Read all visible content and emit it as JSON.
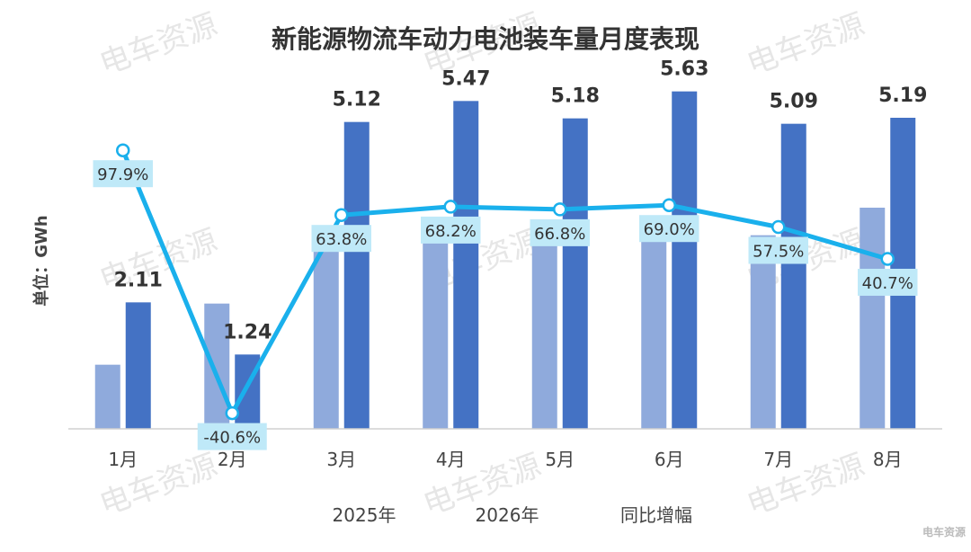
{
  "chart_data": {
    "type": "bar",
    "title": "新能源物流车动力电池装车量月度表现",
    "ylabel": "单位：GWh",
    "categories": [
      "1月",
      "2月",
      "3月",
      "4月",
      "5月",
      "6月",
      "7月",
      "8月"
    ],
    "series": [
      {
        "name": "2025年",
        "values": [
          1.07,
          2.09,
          3.13,
          3.25,
          3.11,
          3.33,
          3.23,
          3.69
        ],
        "color": "#8faadc"
      },
      {
        "name": "2026年",
        "values": [
          2.11,
          1.24,
          5.12,
          5.47,
          5.18,
          5.63,
          5.09,
          5.19
        ],
        "color": "#4472c4"
      }
    ],
    "line_series": {
      "name": "同比增幅",
      "values": [
        97.9,
        -40.6,
        63.8,
        68.2,
        66.8,
        69.0,
        57.5,
        40.7
      ],
      "labels": [
        "97.9%",
        "-40.6%",
        "63.8%",
        "68.2%",
        "66.8%",
        "69.0%",
        "57.5%",
        "40.7%"
      ],
      "color": "#1ab0ec"
    },
    "ylim": [
      0,
      6.0
    ],
    "line_ylim": [
      -55,
      125
    ],
    "grid": false,
    "legend": "bottom"
  },
  "watermark": "电车资源",
  "corner_logo": "电车资源"
}
